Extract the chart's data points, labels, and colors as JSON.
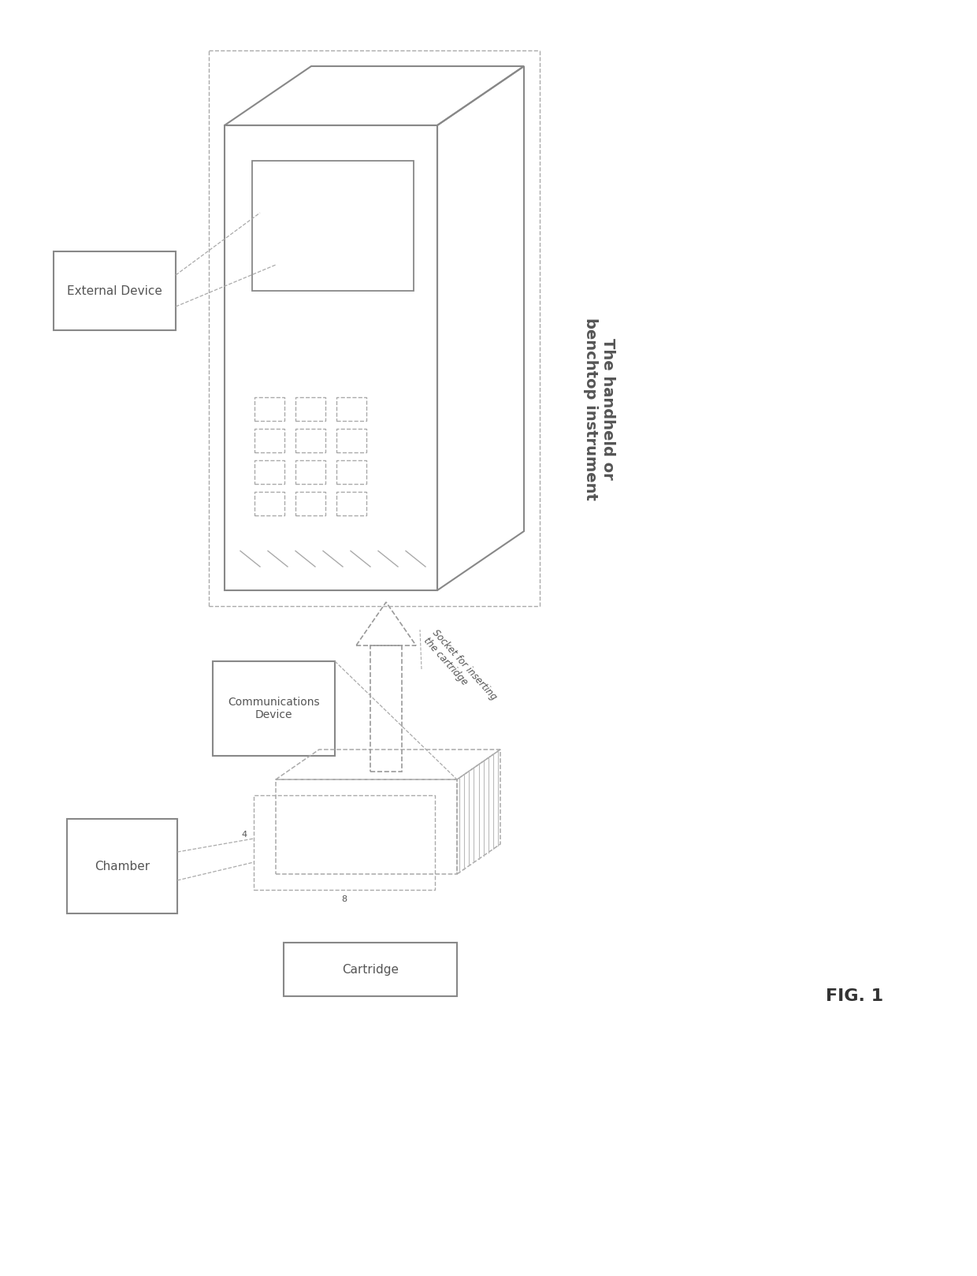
{
  "bg_color": "#ffffff",
  "line_color": "#aaaaaa",
  "solid_color": "#888888",
  "text_color": "#555555",
  "fig_label": "FIG. 1",
  "handheld_label": "The handheld or\nbenchtop instrument",
  "external_device_label": "External Device",
  "comm_device_label": "Communications\nDevice",
  "chamber_label": "Chamber",
  "cartridge_label": "Cartridge",
  "socket_label": "Socket for inserting\nthe cartridge"
}
